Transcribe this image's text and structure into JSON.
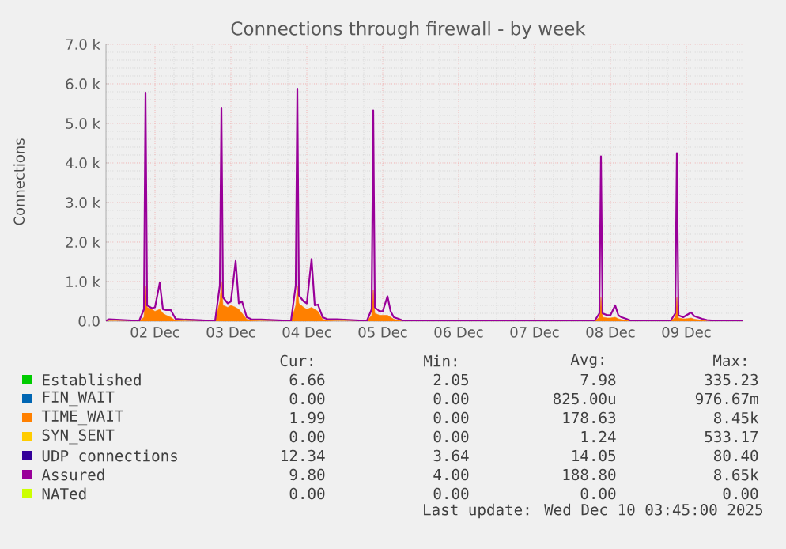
{
  "chart_data": {
    "type": "area",
    "title": "Connections through firewall - by week",
    "ylabel": "Connections",
    "grid": true,
    "legend": "bottom",
    "xlim": [
      "2025-12-01T20:30",
      "2025-12-10T06:00"
    ],
    "ylim": [
      0,
      7000
    ],
    "xticks": [
      {
        "value": "2025-12-02T12:00",
        "label": "02 Dec"
      },
      {
        "value": "2025-12-03T12:00",
        "label": "03 Dec"
      },
      {
        "value": "2025-12-04T12:00",
        "label": "04 Dec"
      },
      {
        "value": "2025-12-05T12:00",
        "label": "05 Dec"
      },
      {
        "value": "2025-12-06T12:00",
        "label": "06 Dec"
      },
      {
        "value": "2025-12-07T12:00",
        "label": "07 Dec"
      },
      {
        "value": "2025-12-08T12:00",
        "label": "08 Dec"
      },
      {
        "value": "2025-12-09T12:00",
        "label": "09 Dec"
      }
    ],
    "yticks": [
      {
        "value": 0,
        "label": "0.0"
      },
      {
        "value": 1000,
        "label": "1.0 k"
      },
      {
        "value": 2000,
        "label": "2.0 k"
      },
      {
        "value": 3000,
        "label": "3.0 k"
      },
      {
        "value": 4000,
        "label": "4.0 k"
      },
      {
        "value": 5000,
        "label": "5.0 k"
      },
      {
        "value": 6000,
        "label": "6.0 k"
      },
      {
        "value": 7000,
        "label": "7.0 k"
      }
    ],
    "x": [
      "2025-12-01T20:30",
      "2025-12-01T21:30",
      "2025-12-02T07:00",
      "2025-12-02T08:30",
      "2025-12-02T09:00",
      "2025-12-02T09:30",
      "2025-12-02T11:00",
      "2025-12-02T12:00",
      "2025-12-02T13:30",
      "2025-12-02T14:30",
      "2025-12-02T15:30",
      "2025-12-02T17:00",
      "2025-12-02T18:30",
      "2025-12-02T21:30",
      "2025-12-03T07:00",
      "2025-12-03T08:30",
      "2025-12-03T09:00",
      "2025-12-03T09:30",
      "2025-12-03T11:00",
      "2025-12-03T12:00",
      "2025-12-03T13:30",
      "2025-12-03T14:30",
      "2025-12-03T15:30",
      "2025-12-03T17:00",
      "2025-12-03T18:30",
      "2025-12-03T21:30",
      "2025-12-04T07:00",
      "2025-12-04T08:30",
      "2025-12-04T09:00",
      "2025-12-04T09:30",
      "2025-12-04T11:00",
      "2025-12-04T12:00",
      "2025-12-04T13:30",
      "2025-12-04T14:30",
      "2025-12-04T15:30",
      "2025-12-04T17:00",
      "2025-12-04T18:30",
      "2025-12-04T21:30",
      "2025-12-05T07:00",
      "2025-12-05T08:30",
      "2025-12-05T09:00",
      "2025-12-05T09:30",
      "2025-12-05T11:00",
      "2025-12-05T12:00",
      "2025-12-05T13:30",
      "2025-12-05T14:30",
      "2025-12-05T15:30",
      "2025-12-05T17:00",
      "2025-12-05T18:30",
      "2025-12-05T21:30",
      "2025-12-08T07:00",
      "2025-12-08T08:30",
      "2025-12-08T09:00",
      "2025-12-08T09:30",
      "2025-12-08T11:00",
      "2025-12-08T12:00",
      "2025-12-08T13:30",
      "2025-12-08T14:30",
      "2025-12-08T15:30",
      "2025-12-08T17:00",
      "2025-12-08T18:30",
      "2025-12-08T21:30",
      "2025-12-09T07:00",
      "2025-12-09T08:30",
      "2025-12-09T09:00",
      "2025-12-09T09:30",
      "2025-12-09T11:00",
      "2025-12-09T12:00",
      "2025-12-09T13:30",
      "2025-12-09T14:30",
      "2025-12-09T15:30",
      "2025-12-09T17:00",
      "2025-12-09T18:30",
      "2025-12-09T21:30",
      "2025-12-10T06:00"
    ],
    "series": [
      {
        "name": "Established",
        "color": "#00cc00",
        "values": [
          null,
          null,
          null,
          null,
          null,
          null,
          null,
          null,
          null,
          null,
          null,
          null,
          null,
          null,
          null,
          null,
          null,
          null,
          null,
          null,
          null,
          null,
          null,
          null,
          null,
          null,
          null,
          null,
          null,
          null,
          null,
          null,
          null,
          null,
          null,
          null,
          null,
          null,
          null,
          null,
          null,
          null,
          null,
          null,
          null,
          null,
          null,
          null,
          null,
          null,
          null,
          null,
          null,
          null,
          null,
          null,
          null,
          null,
          null,
          null,
          null,
          null,
          null,
          null,
          null,
          null,
          null,
          null,
          null,
          null,
          null,
          null,
          null,
          null,
          null
        ]
      },
      {
        "name": "FIN_WAIT",
        "color": "#0066b3",
        "values": [
          null,
          null,
          null,
          null,
          null,
          null,
          null,
          null,
          null,
          null,
          null,
          null,
          null,
          null,
          null,
          null,
          null,
          null,
          null,
          null,
          null,
          null,
          null,
          null,
          null,
          null,
          null,
          null,
          null,
          null,
          null,
          null,
          null,
          null,
          null,
          null,
          null,
          null,
          null,
          null,
          null,
          null,
          null,
          null,
          null,
          null,
          null,
          null,
          null,
          null,
          null,
          null,
          null,
          null,
          null,
          null,
          null,
          null,
          null,
          null,
          null,
          null,
          null,
          null,
          null,
          null,
          null,
          null,
          null,
          null,
          null,
          null,
          null,
          null,
          null
        ]
      },
      {
        "name": "TIME_WAIT",
        "color": "#ff8000",
        "values": [
          0,
          0,
          0,
          100,
          900,
          350,
          300,
          250,
          300,
          200,
          150,
          100,
          10,
          0,
          0,
          500,
          1000,
          400,
          350,
          400,
          350,
          300,
          200,
          50,
          10,
          0,
          0,
          400,
          900,
          450,
          350,
          300,
          350,
          300,
          250,
          50,
          10,
          0,
          0,
          150,
          800,
          200,
          150,
          150,
          150,
          100,
          50,
          20,
          0,
          0,
          0,
          100,
          600,
          100,
          80,
          80,
          100,
          60,
          40,
          20,
          0,
          0,
          0,
          100,
          600,
          80,
          60,
          60,
          80,
          50,
          40,
          20,
          0,
          0,
          0
        ]
      },
      {
        "name": "SYN_SENT",
        "color": "#ffcc00",
        "values": [
          null,
          null,
          null,
          null,
          null,
          null,
          null,
          null,
          null,
          null,
          null,
          null,
          null,
          null,
          null,
          null,
          null,
          null,
          null,
          null,
          null,
          null,
          null,
          null,
          null,
          null,
          null,
          null,
          null,
          null,
          null,
          null,
          null,
          null,
          null,
          null,
          null,
          null,
          null,
          null,
          null,
          null,
          null,
          null,
          null,
          null,
          null,
          null,
          null,
          null,
          null,
          null,
          null,
          null,
          null,
          null,
          null,
          null,
          null,
          null,
          null,
          null,
          null,
          null,
          null,
          null,
          null,
          null,
          null,
          null,
          null,
          null,
          null,
          null,
          null
        ]
      },
      {
        "name": "UDP connections",
        "color": "#330099",
        "values": [
          null,
          null,
          null,
          null,
          null,
          null,
          null,
          null,
          null,
          null,
          null,
          null,
          null,
          null,
          null,
          null,
          null,
          null,
          null,
          null,
          null,
          null,
          null,
          null,
          null,
          null,
          null,
          null,
          null,
          null,
          null,
          null,
          null,
          null,
          null,
          null,
          null,
          null,
          null,
          null,
          null,
          null,
          null,
          null,
          null,
          null,
          null,
          null,
          null,
          null,
          null,
          null,
          null,
          null,
          null,
          null,
          null,
          null,
          null,
          null,
          null,
          null,
          null,
          null,
          null,
          null,
          null,
          null,
          null,
          null,
          null,
          null,
          null,
          null,
          null
        ]
      },
      {
        "name": "Assured",
        "color": "#990099",
        "type": "line",
        "values": [
          10,
          50,
          10,
          300,
          5780,
          400,
          330,
          350,
          970,
          300,
          280,
          280,
          60,
          40,
          10,
          900,
          5400,
          600,
          450,
          500,
          1520,
          450,
          500,
          100,
          50,
          40,
          10,
          900,
          5880,
          650,
          500,
          450,
          1570,
          400,
          420,
          100,
          50,
          50,
          10,
          300,
          5330,
          350,
          250,
          250,
          630,
          250,
          100,
          60,
          10,
          10,
          10,
          200,
          4170,
          200,
          150,
          150,
          400,
          150,
          100,
          60,
          10,
          10,
          10,
          200,
          4250,
          150,
          100,
          150,
          220,
          130,
          100,
          60,
          30,
          10,
          10
        ]
      },
      {
        "name": "NATed",
        "color": "#ccff00",
        "type": "line",
        "values": [
          null,
          null,
          null,
          null,
          null,
          null,
          null,
          null,
          null,
          null,
          null,
          null,
          null,
          null,
          null,
          null,
          null,
          null,
          null,
          null,
          null,
          null,
          null,
          null,
          null,
          null,
          null,
          null,
          null,
          null,
          null,
          null,
          null,
          null,
          null,
          null,
          null,
          null,
          null,
          null,
          null,
          null,
          null,
          null,
          null,
          null,
          null,
          null,
          null,
          null,
          null,
          null,
          null,
          null,
          null,
          null,
          null,
          null,
          null,
          null,
          null,
          null,
          null,
          null,
          null,
          null,
          null,
          null,
          null,
          null,
          null,
          null,
          null,
          null,
          null
        ]
      }
    ],
    "annotations": [
      "Cur:",
      "Min:",
      "Avg:",
      "Max:",
      "6.66",
      "2.05",
      "7.98",
      "335.23",
      "0.00",
      "0.00",
      "825.00u",
      "976.67m",
      "1.99",
      "0.00",
      "178.63",
      "8.45k",
      "0.00",
      "0.00",
      "1.24",
      "533.17",
      "12.34",
      "3.64",
      "14.05",
      "80.40",
      "9.80",
      "4.00",
      "188.80",
      "8.65k",
      "0.00",
      "0.00",
      "0.00",
      "0.00",
      "Last update: Wed Dec 10 03:45:00 2025"
    ]
  }
}
